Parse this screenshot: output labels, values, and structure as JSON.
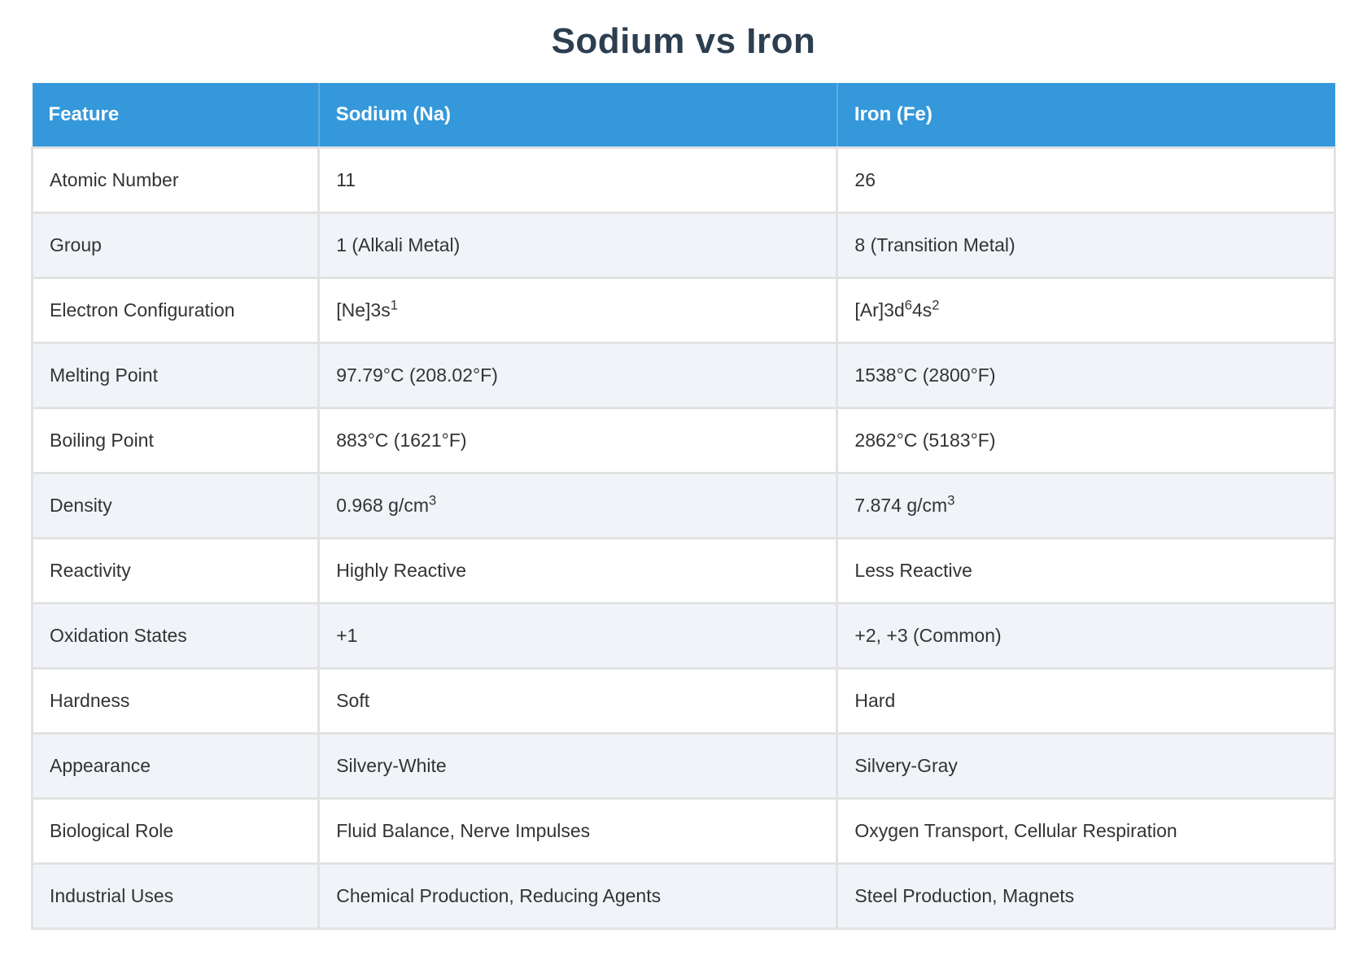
{
  "page": {
    "title": "Sodium vs Iron"
  },
  "colors": {
    "header_bg": "#3498db",
    "header_text": "#ffffff",
    "header_divider": "#5fafe4",
    "stripe": "#f0f4f8",
    "border": "#e2e2e2",
    "title_color": "#2c3e50",
    "text_color": "#333333"
  },
  "table": {
    "columns": [
      "Feature",
      "Sodium (Na)",
      "Iron (Fe)"
    ],
    "rows": [
      {
        "feature": "Atomic Number",
        "sodium": "11",
        "iron": "26"
      },
      {
        "feature": "Group",
        "sodium": "1 (Alkali Metal)",
        "iron": "8 (Transition Metal)"
      },
      {
        "feature": "Electron Configuration",
        "sodium": [
          {
            "text": "[Ne]3s"
          },
          {
            "text": "1",
            "sup": true
          }
        ],
        "iron": [
          {
            "text": "[Ar]3d"
          },
          {
            "text": "6",
            "sup": true
          },
          {
            "text": "4s"
          },
          {
            "text": "2",
            "sup": true
          }
        ]
      },
      {
        "feature": "Melting Point",
        "sodium": "97.79°C (208.02°F)",
        "iron": "1538°C (2800°F)"
      },
      {
        "feature": "Boiling Point",
        "sodium": "883°C (1621°F)",
        "iron": "2862°C (5183°F)"
      },
      {
        "feature": "Density",
        "sodium": [
          {
            "text": "0.968 g/cm"
          },
          {
            "text": "3",
            "sup": true
          }
        ],
        "iron": [
          {
            "text": "7.874 g/cm"
          },
          {
            "text": "3",
            "sup": true
          }
        ]
      },
      {
        "feature": "Reactivity",
        "sodium": "Highly Reactive",
        "iron": "Less Reactive"
      },
      {
        "feature": "Oxidation States",
        "sodium": "+1",
        "iron": "+2, +3 (Common)"
      },
      {
        "feature": "Hardness",
        "sodium": "Soft",
        "iron": "Hard"
      },
      {
        "feature": "Appearance",
        "sodium": "Silvery-White",
        "iron": "Silvery-Gray"
      },
      {
        "feature": "Biological Role",
        "sodium": "Fluid Balance, Nerve Impulses",
        "iron": "Oxygen Transport, Cellular Respiration"
      },
      {
        "feature": "Industrial Uses",
        "sodium": "Chemical Production, Reducing Agents",
        "iron": "Steel Production, Magnets"
      }
    ]
  }
}
